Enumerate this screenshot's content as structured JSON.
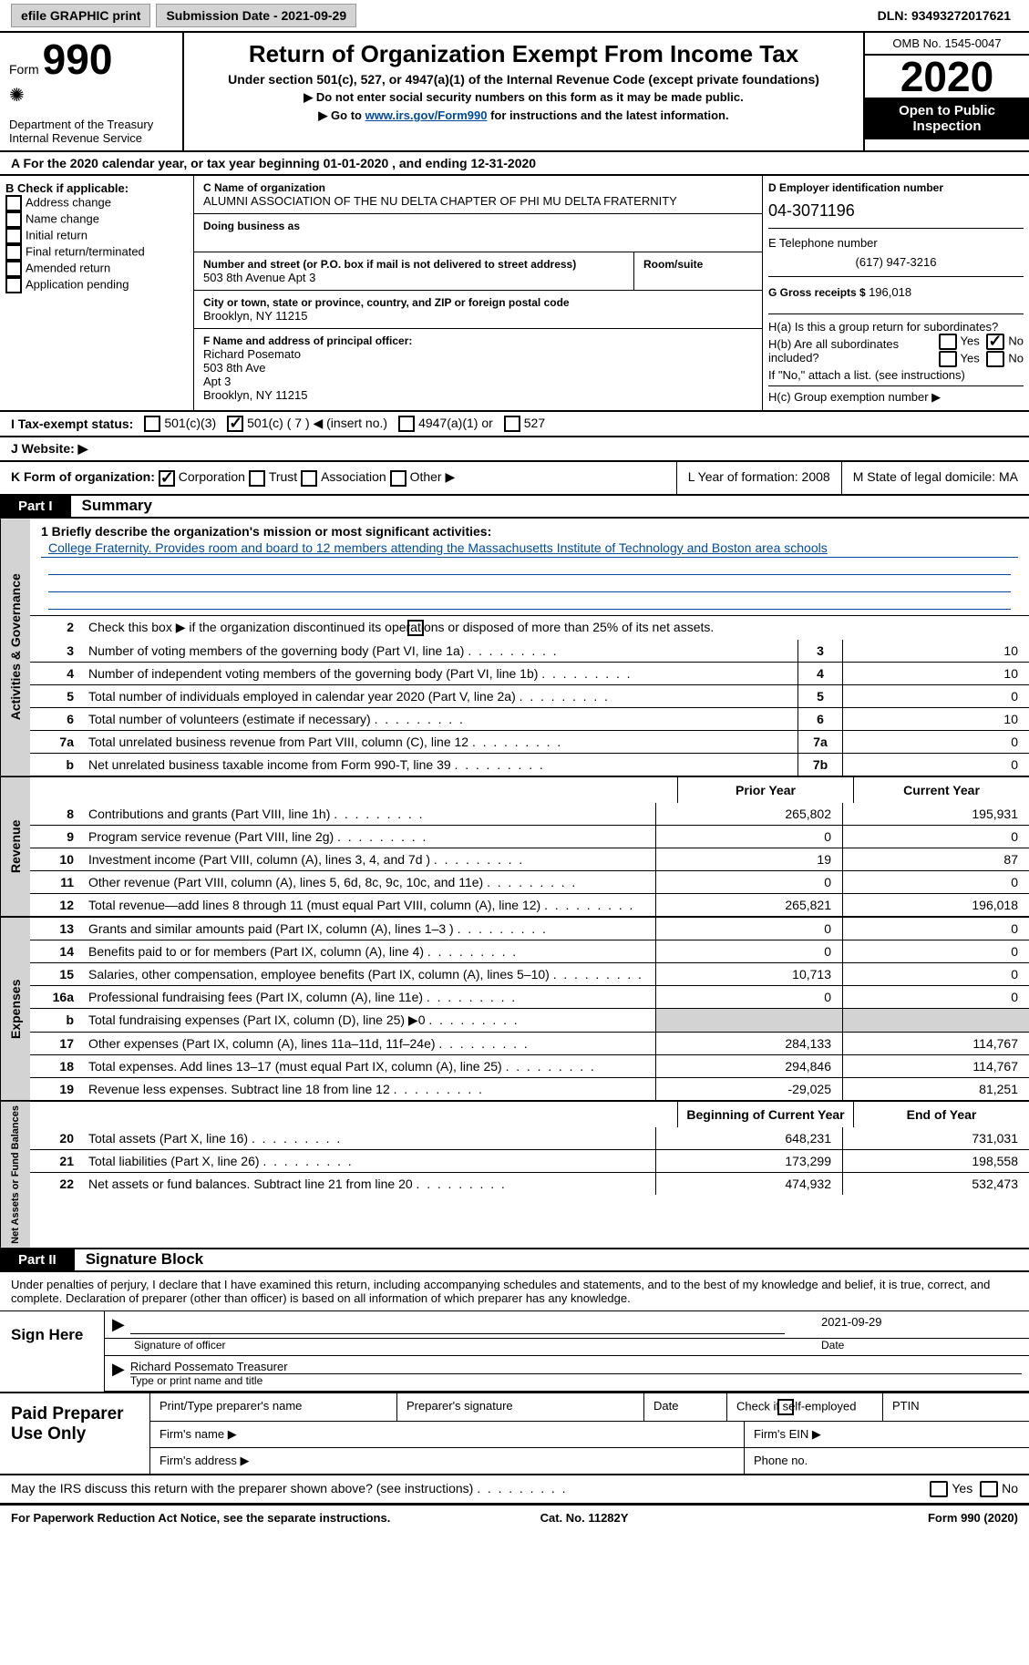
{
  "topbar": {
    "efile": "efile GRAPHIC print",
    "sub_label": "Submission Date - ",
    "sub_date": "2021-09-29",
    "dln_label": "DLN: ",
    "dln": "93493272017621"
  },
  "header": {
    "form_word": "Form",
    "form_num": "990",
    "dept": "Department of the Treasury\nInternal Revenue Service",
    "title": "Return of Organization Exempt From Income Tax",
    "subtitle": "Under section 501(c), 527, or 4947(a)(1) of the Internal Revenue Code (except private foundations)",
    "instr1": "▶ Do not enter social security numbers on this form as it may be made public.",
    "instr2_pre": "▶ Go to ",
    "instr2_link": "www.irs.gov/Form990",
    "instr2_post": " for instructions and the latest information.",
    "omb": "OMB No. 1545-0047",
    "year": "2020",
    "open": "Open to Public Inspection"
  },
  "period": "A  For the 2020 calendar year, or tax year beginning 01-01-2020    , and ending 12-31-2020",
  "boxB": {
    "header": "B Check if applicable:",
    "items": [
      "Address change",
      "Name change",
      "Initial return",
      "Final return/terminated",
      "Amended return",
      "Application pending"
    ]
  },
  "boxC": {
    "name_lbl": "C Name of organization",
    "name": "ALUMNI ASSOCIATION OF THE NU DELTA CHAPTER OF PHI MU DELTA FRATERNITY",
    "dba_lbl": "Doing business as",
    "addr_lbl": "Number and street (or P.O. box if mail is not delivered to street address)",
    "room_lbl": "Room/suite",
    "addr": "503 8th Avenue Apt 3",
    "city_lbl": "City or town, state or province, country, and ZIP or foreign postal code",
    "city": "Brooklyn, NY  11215"
  },
  "boxD": {
    "ein_lbl": "D Employer identification number",
    "ein": "04-3071196",
    "tel_lbl": "E Telephone number",
    "tel": "(617) 947-3216",
    "gross_lbl": "G Gross receipts $ ",
    "gross": "196,018"
  },
  "boxF": {
    "lbl": "F  Name and address of principal officer:",
    "name": "Richard Posemato",
    "addr1": "503 8th Ave",
    "addr2": "Apt 3",
    "city": "Brooklyn, NY  11215"
  },
  "boxH": {
    "a": "H(a)  Is this a group return for subordinates?",
    "b": "H(b)  Are all subordinates included?",
    "b_note": "If \"No,\" attach a list. (see instructions)",
    "c": "H(c)  Group exemption number ▶"
  },
  "taxI": {
    "lbl": "I   Tax-exempt status:",
    "o1": "501(c)(3)",
    "o2": "501(c) ( 7 ) ◀ (insert no.)",
    "o3": "4947(a)(1) or",
    "o4": "527"
  },
  "rowJ": "J   Website: ▶",
  "rowK": {
    "lbl": "K Form of organization:",
    "o1": "Corporation",
    "o2": "Trust",
    "o3": "Association",
    "o4": "Other ▶",
    "L": "L Year of formation: 2008",
    "M": "M State of legal domicile: MA"
  },
  "partI": {
    "hdr": "Part I",
    "title": "Summary"
  },
  "summary": {
    "sideA": "Activities & Governance",
    "sideR": "Revenue",
    "sideE": "Expenses",
    "sideN": "Net Assets or Fund Balances",
    "l1_lbl": "1  Briefly describe the organization's mission or most significant activities:",
    "l1_text": "College Fraternity. Provides room and board to 12 members attending the Massachusetts Institute of Technology and Boston area schools",
    "l2": "Check this box ▶         if the organization discontinued its operations or disposed of more than 25% of its net assets.",
    "lines_gov": [
      {
        "n": "3",
        "t": "Number of voting members of the governing body (Part VI, line 1a)",
        "b": "3",
        "v": "10"
      },
      {
        "n": "4",
        "t": "Number of independent voting members of the governing body (Part VI, line 1b)",
        "b": "4",
        "v": "10"
      },
      {
        "n": "5",
        "t": "Total number of individuals employed in calendar year 2020 (Part V, line 2a)",
        "b": "5",
        "v": "0"
      },
      {
        "n": "6",
        "t": "Total number of volunteers (estimate if necessary)",
        "b": "6",
        "v": "10"
      },
      {
        "n": "7a",
        "t": "Total unrelated business revenue from Part VIII, column (C), line 12",
        "b": "7a",
        "v": "0"
      },
      {
        "n": "b",
        "t": "Net unrelated business taxable income from Form 990-T, line 39",
        "b": "7b",
        "v": "0"
      }
    ],
    "hdr_prior": "Prior Year",
    "hdr_curr": "Current Year",
    "lines_rev": [
      {
        "n": "8",
        "t": "Contributions and grants (Part VIII, line 1h)",
        "p": "265,802",
        "c": "195,931"
      },
      {
        "n": "9",
        "t": "Program service revenue (Part VIII, line 2g)",
        "p": "0",
        "c": "0"
      },
      {
        "n": "10",
        "t": "Investment income (Part VIII, column (A), lines 3, 4, and 7d )",
        "p": "19",
        "c": "87"
      },
      {
        "n": "11",
        "t": "Other revenue (Part VIII, column (A), lines 5, 6d, 8c, 9c, 10c, and 11e)",
        "p": "0",
        "c": "0"
      },
      {
        "n": "12",
        "t": "Total revenue—add lines 8 through 11 (must equal Part VIII, column (A), line 12)",
        "p": "265,821",
        "c": "196,018"
      }
    ],
    "lines_exp": [
      {
        "n": "13",
        "t": "Grants and similar amounts paid (Part IX, column (A), lines 1–3 )",
        "p": "0",
        "c": "0"
      },
      {
        "n": "14",
        "t": "Benefits paid to or for members (Part IX, column (A), line 4)",
        "p": "0",
        "c": "0"
      },
      {
        "n": "15",
        "t": "Salaries, other compensation, employee benefits (Part IX, column (A), lines 5–10)",
        "p": "10,713",
        "c": "0"
      },
      {
        "n": "16a",
        "t": "Professional fundraising fees (Part IX, column (A), line 11e)",
        "p": "0",
        "c": "0"
      },
      {
        "n": "b",
        "t": "Total fundraising expenses (Part IX, column (D), line 25) ▶0",
        "p": "",
        "c": "",
        "shade": true
      },
      {
        "n": "17",
        "t": "Other expenses (Part IX, column (A), lines 11a–11d, 11f–24e)",
        "p": "284,133",
        "c": "114,767"
      },
      {
        "n": "18",
        "t": "Total expenses. Add lines 13–17 (must equal Part IX, column (A), line 25)",
        "p": "294,846",
        "c": "114,767"
      },
      {
        "n": "19",
        "t": "Revenue less expenses. Subtract line 18 from line 12",
        "p": "-29,025",
        "c": "81,251"
      }
    ],
    "hdr_beg": "Beginning of Current Year",
    "hdr_end": "End of Year",
    "lines_net": [
      {
        "n": "20",
        "t": "Total assets (Part X, line 16)",
        "p": "648,231",
        "c": "731,031"
      },
      {
        "n": "21",
        "t": "Total liabilities (Part X, line 26)",
        "p": "173,299",
        "c": "198,558"
      },
      {
        "n": "22",
        "t": "Net assets or fund balances. Subtract line 21 from line 20",
        "p": "474,932",
        "c": "532,473"
      }
    ]
  },
  "partII": {
    "hdr": "Part II",
    "title": "Signature Block"
  },
  "sig": {
    "declare": "Under penalties of perjury, I declare that I have examined this return, including accompanying schedules and statements, and to the best of my knowledge and belief, it is true, correct, and complete. Declaration of preparer (other than officer) is based on all information of which preparer has any knowledge.",
    "sign_here": "Sign Here",
    "sig_lbl": "Signature of officer",
    "date_lbl": "Date",
    "date": "2021-09-29",
    "name": "Richard Possemato Treasurer",
    "name_lbl": "Type or print name and title",
    "paid": "Paid Preparer Use Only",
    "p1": "Print/Type preparer's name",
    "p2": "Preparer's signature",
    "p3": "Date",
    "p4": "Check         if self-employed",
    "p5": "PTIN",
    "f1": "Firm's name   ▶",
    "f2": "Firm's EIN ▶",
    "f3": "Firm's address ▶",
    "f4": "Phone no."
  },
  "discuss": "May the IRS discuss this return with the preparer shown above? (see instructions)",
  "footer": {
    "l": "For Paperwork Reduction Act Notice, see the separate instructions.",
    "m": "Cat. No. 11282Y",
    "r": "Form 990 (2020)"
  }
}
